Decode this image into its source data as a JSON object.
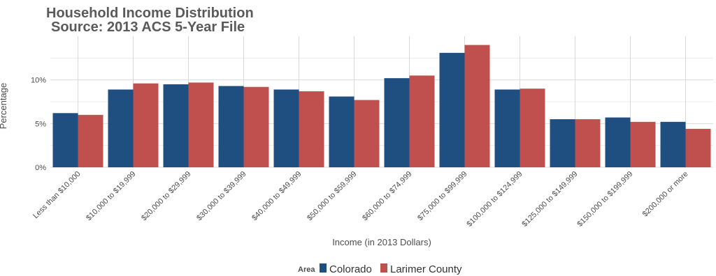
{
  "chart_data": {
    "type": "bar",
    "title": "Household Income Distribution",
    "subtitle": "Source: 2013 ACS 5-Year File",
    "xlabel": "Income (in 2013 Dollars)",
    "ylabel": "Percentage",
    "ylim": [
      0,
      15
    ],
    "yticks": [
      {
        "value": 0,
        "label": "0%"
      },
      {
        "value": 5,
        "label": "5%"
      },
      {
        "value": 10,
        "label": "10%"
      }
    ],
    "grid": true,
    "categories": [
      "Less than $10,000",
      "$10,000 to $19,999",
      "$20,000 to $29,999",
      "$30,000 to $39,999",
      "$40,000 to $49,999",
      "$50,000 to $59,999",
      "$60,000 to $74,999",
      "$75,000 to $99,999",
      "$100,000 to $124,999",
      "$125,000 to $149,999",
      "$150,000 to $199,999",
      "$200,000 or more"
    ],
    "series": [
      {
        "name": "Colorado",
        "color": "#1f4e80",
        "values": [
          6.2,
          8.9,
          9.5,
          9.3,
          8.9,
          8.1,
          10.2,
          13.1,
          8.9,
          5.5,
          5.7,
          5.2
        ]
      },
      {
        "name": "Larimer County",
        "color": "#c0504d",
        "values": [
          6.0,
          9.6,
          9.7,
          9.2,
          8.7,
          7.7,
          10.5,
          14.0,
          9.0,
          5.5,
          5.2,
          4.4
        ]
      }
    ],
    "legend": {
      "title": "Area",
      "position": "bottom"
    }
  }
}
